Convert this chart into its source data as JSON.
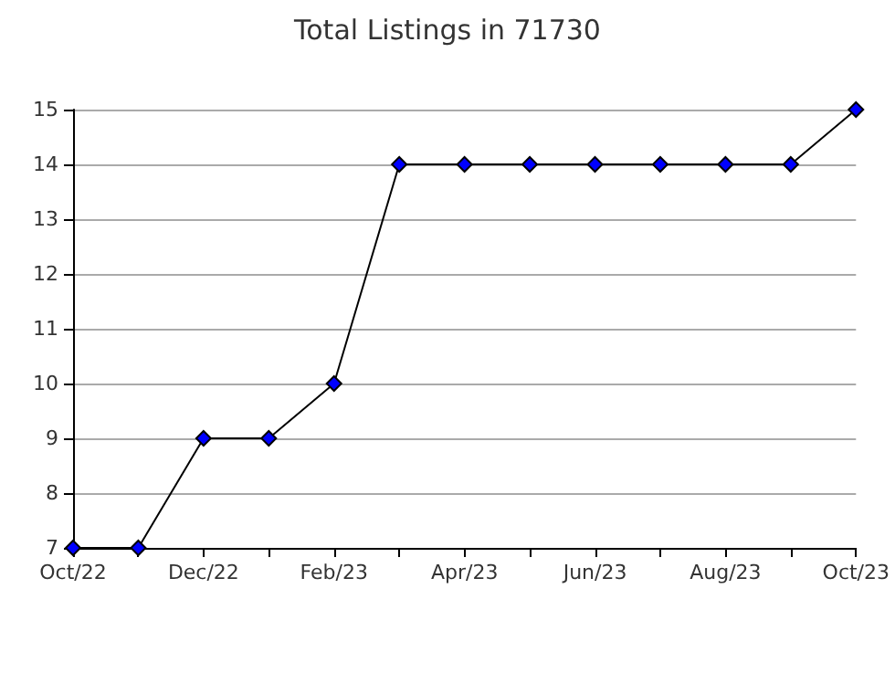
{
  "chart_data": {
    "type": "line",
    "title": "Total Listings in 71730",
    "categories": [
      "Oct/22",
      null,
      "Dec/22",
      null,
      "Feb/23",
      null,
      "Apr/23",
      null,
      "Jun/23",
      null,
      "Aug/23",
      null,
      "Oct/23"
    ],
    "series": [
      {
        "color": "#0000ff",
        "values": [
          7,
          7,
          9,
          9,
          10,
          14,
          14,
          14,
          14,
          14,
          14,
          14,
          15
        ]
      }
    ],
    "ylim": [
      7,
      15
    ],
    "yticks": [
      7,
      8,
      9,
      10,
      11,
      12,
      13,
      14,
      15
    ],
    "grid": "y",
    "marker": "diamond",
    "line_style": "solid"
  }
}
